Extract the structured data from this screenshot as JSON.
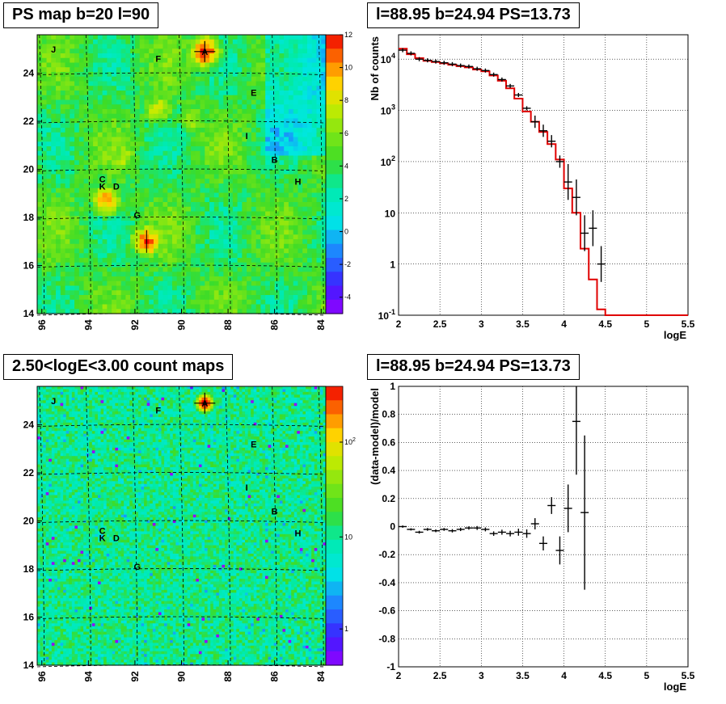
{
  "titles": {
    "ps_map": "PS map b=20 l=90",
    "spectrum": "l=88.95 b=24.94 PS=13.73",
    "count_map": "2.50<logE<3.00 count maps",
    "residual": "l=88.95 b=24.94 PS=13.73"
  },
  "chart_data": [
    {
      "type": "heatmap",
      "title": "PS map b=20 l=90",
      "x_ticks": [
        "96",
        "94",
        "92",
        "90",
        "88",
        "86",
        "84"
      ],
      "y_ticks": [
        "14",
        "16",
        "18",
        "20",
        "22",
        "24"
      ],
      "xlim": [
        96.2,
        83.8
      ],
      "ylim": [
        14,
        25.6
      ],
      "colorbar_ticks": [
        "12",
        "10",
        "8",
        "6",
        "4",
        "2",
        "0",
        "-2",
        "-4"
      ],
      "colorbar_range": [
        -5,
        12
      ],
      "sources": [
        {
          "label": "A",
          "l": 89.0,
          "b": 24.9
        },
        {
          "label": "F",
          "l": 91.0,
          "b": 24.6
        },
        {
          "label": "J",
          "l": 95.5,
          "b": 25.0
        },
        {
          "label": "E",
          "l": 86.9,
          "b": 23.2
        },
        {
          "label": "I",
          "l": 87.2,
          "b": 21.4
        },
        {
          "label": "B",
          "l": 86.0,
          "b": 20.4
        },
        {
          "label": "H",
          "l": 85.0,
          "b": 19.5
        },
        {
          "label": "C",
          "l": 93.4,
          "b": 19.6
        },
        {
          "label": "K",
          "l": 93.4,
          "b": 19.3
        },
        {
          "label": "D",
          "l": 92.8,
          "b": 19.3
        },
        {
          "label": "G",
          "l": 91.9,
          "b": 18.1
        }
      ],
      "hotspots": [
        {
          "l": 89.0,
          "b": 24.9,
          "value": 11
        },
        {
          "l": 91.5,
          "b": 17.0,
          "value": 10
        },
        {
          "l": 93.2,
          "b": 18.7,
          "value": 9
        },
        {
          "l": 91.0,
          "b": 22.5,
          "value": 7
        },
        {
          "l": 92.5,
          "b": 20.5,
          "value": 6
        },
        {
          "l": 89.5,
          "b": 22.0,
          "value": 6
        }
      ]
    },
    {
      "type": "line",
      "title": "l=88.95 b=24.94 PS=13.73",
      "xlabel": "logE",
      "ylabel": "Nb of counts",
      "xlim": [
        2,
        5.5
      ],
      "ylim": [
        0.1,
        30000
      ],
      "y_log": true,
      "x_ticks": [
        "2",
        "2.5",
        "3",
        "3.5",
        "4",
        "4.5",
        "5",
        "5.5"
      ],
      "y_ticks": [
        "10^-1",
        "1",
        "10",
        "10^2",
        "10^3",
        "10^4"
      ],
      "series": [
        {
          "kind": "data",
          "x": [
            2.05,
            2.15,
            2.25,
            2.35,
            2.45,
            2.55,
            2.65,
            2.75,
            2.85,
            2.95,
            3.05,
            3.15,
            3.25,
            3.35,
            3.45,
            3.55,
            3.65,
            3.75,
            3.85,
            3.95,
            4.05,
            4.15,
            4.25,
            4.35,
            4.45
          ],
          "y": [
            15000,
            13000,
            10000,
            9500,
            9000,
            8500,
            8000,
            7500,
            7200,
            6500,
            6000,
            5000,
            4000,
            3000,
            2000,
            1100,
            600,
            400,
            250,
            100,
            40,
            20,
            4,
            5,
            1
          ]
        },
        {
          "kind": "model",
          "x": [
            2.0,
            2.1,
            2.2,
            2.3,
            2.4,
            2.5,
            2.6,
            2.7,
            2.8,
            2.9,
            3.0,
            3.1,
            3.2,
            3.3,
            3.4,
            3.5,
            3.6,
            3.7,
            3.8,
            3.9,
            4.0,
            4.1,
            4.2,
            4.3,
            4.4,
            4.5,
            5.5
          ],
          "y": [
            16000,
            12500,
            10500,
            9300,
            8800,
            8300,
            7800,
            7300,
            6900,
            6300,
            5800,
            4800,
            3800,
            2700,
            1700,
            950,
            600,
            380,
            220,
            110,
            30,
            10,
            2,
            0.5,
            0.13,
            0.1,
            0.1
          ]
        }
      ]
    },
    {
      "type": "heatmap",
      "title": "2.50<logE<3.00 count maps",
      "x_ticks": [
        "96",
        "94",
        "92",
        "90",
        "88",
        "86",
        "84"
      ],
      "y_ticks": [
        "14",
        "16",
        "18",
        "20",
        "22",
        "24"
      ],
      "xlim": [
        96.2,
        83.8
      ],
      "ylim": [
        14,
        25.6
      ],
      "colorbar_ticks": [
        "10^2",
        "10",
        "1"
      ],
      "sources": [
        {
          "label": "A",
          "l": 89.0,
          "b": 24.9
        },
        {
          "label": "F",
          "l": 91.0,
          "b": 24.6
        },
        {
          "label": "J",
          "l": 95.5,
          "b": 25.0
        },
        {
          "label": "E",
          "l": 86.9,
          "b": 23.2
        },
        {
          "label": "I",
          "l": 87.2,
          "b": 21.4
        },
        {
          "label": "B",
          "l": 86.0,
          "b": 20.4
        },
        {
          "label": "H",
          "l": 85.0,
          "b": 19.5
        },
        {
          "label": "C",
          "l": 93.4,
          "b": 19.6
        },
        {
          "label": "K",
          "l": 93.4,
          "b": 19.3
        },
        {
          "label": "D",
          "l": 92.8,
          "b": 19.3
        },
        {
          "label": "G",
          "l": 91.9,
          "b": 18.1
        }
      ]
    },
    {
      "type": "scatter",
      "title": "l=88.95 b=24.94 PS=13.73",
      "xlabel": "logE",
      "ylabel": "(data-model)/model",
      "xlim": [
        2,
        5.5
      ],
      "ylim": [
        -1,
        1
      ],
      "x_ticks": [
        "2",
        "2.5",
        "3",
        "3.5",
        "4",
        "4.5",
        "5",
        "5.5"
      ],
      "y_ticks": [
        "-1",
        "-0.8",
        "-0.6",
        "-0.4",
        "-0.2",
        "0",
        "0.2",
        "0.4",
        "0.6",
        "0.8",
        "1"
      ],
      "points": {
        "x": [
          2.05,
          2.15,
          2.25,
          2.35,
          2.45,
          2.55,
          2.65,
          2.75,
          2.85,
          2.95,
          3.05,
          3.15,
          3.25,
          3.35,
          3.45,
          3.55,
          3.65,
          3.75,
          3.85,
          3.95,
          4.05,
          4.15,
          4.25
        ],
        "y": [
          0,
          -0.02,
          -0.04,
          -0.02,
          -0.03,
          -0.02,
          -0.03,
          -0.02,
          -0.01,
          -0.01,
          -0.02,
          -0.05,
          -0.04,
          -0.05,
          -0.04,
          -0.05,
          0.02,
          -0.12,
          0.15,
          -0.17,
          0.13,
          0.75,
          0.1
        ],
        "err": [
          0.008,
          0.008,
          0.01,
          0.01,
          0.01,
          0.01,
          0.012,
          0.012,
          0.012,
          0.014,
          0.014,
          0.016,
          0.018,
          0.02,
          0.025,
          0.03,
          0.04,
          0.05,
          0.06,
          0.1,
          0.17,
          0.38,
          0.55
        ]
      }
    }
  ]
}
